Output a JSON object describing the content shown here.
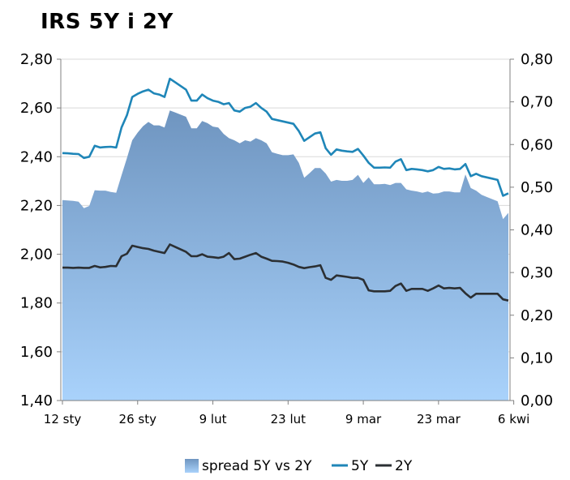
{
  "chart_data": {
    "type": "line",
    "title": "IRS 5Y i 2Y",
    "x_ticks": [
      "12 sty",
      "26 sty",
      "9 lut",
      "23 lut",
      "9 mar",
      "23 mar",
      "6 kwi"
    ],
    "y_left": {
      "min": 1.4,
      "max": 2.8,
      "ticks": [
        "1,40",
        "1,60",
        "1,80",
        "2,00",
        "2,20",
        "2,40",
        "2,60",
        "2,80"
      ]
    },
    "y_right": {
      "min": 0.0,
      "max": 0.8,
      "ticks": [
        "0,00",
        "0,10",
        "0,20",
        "0,30",
        "0,40",
        "0,50",
        "0,60",
        "0,70",
        "0,80"
      ]
    },
    "grid": "horizontal",
    "legend_position": "bottom",
    "colors": {
      "spread": "#6f95c0",
      "spread_light": "#a9d2fb",
      "five_y": "#1f86b8",
      "two_y": "#2b2f33",
      "grid": "#d9d9d9"
    },
    "series": [
      {
        "name": "5Y",
        "axis": "left",
        "values": [
          2.415,
          2.414,
          2.412,
          2.411,
          2.395,
          2.4,
          2.445,
          2.438,
          2.44,
          2.441,
          2.438,
          2.52,
          2.57,
          2.645,
          2.658,
          2.668,
          2.675,
          2.66,
          2.655,
          2.645,
          2.72,
          2.705,
          2.69,
          2.675,
          2.63,
          2.63,
          2.655,
          2.64,
          2.63,
          2.625,
          2.615,
          2.62,
          2.59,
          2.585,
          2.6,
          2.605,
          2.62,
          2.6,
          2.585,
          2.555,
          2.55,
          2.545,
          2.54,
          2.535,
          2.505,
          2.465,
          2.48,
          2.495,
          2.5,
          2.435,
          2.408,
          2.43,
          2.425,
          2.422,
          2.42,
          2.432,
          2.405,
          2.375,
          2.355,
          2.355,
          2.356,
          2.355,
          2.38,
          2.39,
          2.345,
          2.35,
          2.348,
          2.345,
          2.34,
          2.345,
          2.358,
          2.35,
          2.352,
          2.348,
          2.35,
          2.37,
          2.32,
          2.33,
          2.32,
          2.315,
          2.31,
          2.305,
          2.24,
          2.25
        ]
      },
      {
        "name": "2Y",
        "axis": "left",
        "values": [
          1.945,
          1.945,
          1.944,
          1.945,
          1.944,
          1.944,
          1.952,
          1.946,
          1.948,
          1.952,
          1.951,
          1.992,
          2.002,
          2.035,
          2.03,
          2.025,
          2.022,
          2.015,
          2.01,
          2.005,
          2.04,
          2.03,
          2.02,
          2.01,
          1.992,
          1.992,
          2.0,
          1.99,
          1.988,
          1.985,
          1.99,
          2.005,
          1.98,
          1.982,
          1.99,
          1.998,
          2.005,
          1.99,
          1.982,
          1.973,
          1.972,
          1.97,
          1.965,
          1.958,
          1.948,
          1.943,
          1.947,
          1.95,
          1.955,
          1.903,
          1.895,
          1.913,
          1.91,
          1.907,
          1.903,
          1.903,
          1.895,
          1.852,
          1.848,
          1.848,
          1.848,
          1.85,
          1.87,
          1.88,
          1.85,
          1.858,
          1.858,
          1.858,
          1.85,
          1.86,
          1.872,
          1.86,
          1.862,
          1.86,
          1.862,
          1.84,
          1.822,
          1.838,
          1.838,
          1.838,
          1.838,
          1.838,
          1.815,
          1.81
        ]
      },
      {
        "name": "spread 5Y vs 2Y",
        "axis": "right",
        "type": "area",
        "values": [
          0.47,
          0.469,
          0.468,
          0.466,
          0.451,
          0.456,
          0.493,
          0.492,
          0.492,
          0.489,
          0.487,
          0.528,
          0.568,
          0.61,
          0.628,
          0.643,
          0.653,
          0.645,
          0.645,
          0.64,
          0.68,
          0.675,
          0.67,
          0.665,
          0.638,
          0.638,
          0.655,
          0.65,
          0.642,
          0.64,
          0.625,
          0.615,
          0.61,
          0.603,
          0.61,
          0.607,
          0.615,
          0.61,
          0.603,
          0.582,
          0.578,
          0.575,
          0.575,
          0.577,
          0.557,
          0.522,
          0.533,
          0.545,
          0.545,
          0.532,
          0.513,
          0.517,
          0.515,
          0.515,
          0.517,
          0.529,
          0.51,
          0.523,
          0.507,
          0.507,
          0.508,
          0.505,
          0.51,
          0.51,
          0.495,
          0.492,
          0.49,
          0.487,
          0.49,
          0.485,
          0.486,
          0.49,
          0.49,
          0.488,
          0.488,
          0.53,
          0.498,
          0.492,
          0.482,
          0.477,
          0.472,
          0.467,
          0.425,
          0.44
        ]
      }
    ],
    "x_tick_indices": [
      0,
      14,
      28,
      42,
      56,
      70,
      84
    ]
  }
}
